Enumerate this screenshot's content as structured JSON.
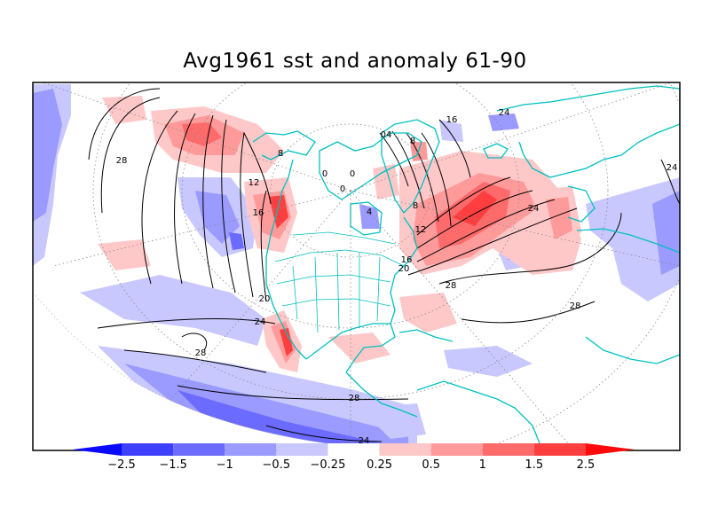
{
  "title": "Avg1961 sst and anomaly 61-90",
  "map": {
    "projection": "polar-stereographic",
    "region": "North America / North Pacific / North Atlantic",
    "contour_color": "#000000",
    "coastline_color": "#00c0c0",
    "grid_style": "dotted"
  },
  "contour_labels": [
    {
      "id": "c28-pac-north",
      "text": "28"
    },
    {
      "id": "c12-pac",
      "text": "12"
    },
    {
      "id": "c16-pac",
      "text": "16"
    },
    {
      "id": "c20-pac",
      "text": "20"
    },
    {
      "id": "c24-pac",
      "text": "24"
    },
    {
      "id": "c28-pac-south",
      "text": "28"
    },
    {
      "id": "c28-trop",
      "text": "28"
    },
    {
      "id": "c24-bottom",
      "text": "24"
    },
    {
      "id": "c8-alaska",
      "text": "8"
    },
    {
      "id": "c0-a",
      "text": "0"
    },
    {
      "id": "c0-b",
      "text": "0"
    },
    {
      "id": "c0-c",
      "text": "0"
    },
    {
      "id": "c4-hudson",
      "text": "4"
    },
    {
      "id": "c04-green",
      "text": "04"
    },
    {
      "id": "c8-green",
      "text": "8"
    },
    {
      "id": "c16-green",
      "text": "16"
    },
    {
      "id": "c24-europe",
      "text": "24"
    },
    {
      "id": "c8-lab",
      "text": "8"
    },
    {
      "id": "c12-atl",
      "text": "12"
    },
    {
      "id": "c16-atl",
      "text": "16"
    },
    {
      "id": "c20-atl",
      "text": "20"
    },
    {
      "id": "c24-atl",
      "text": "24"
    },
    {
      "id": "c28-atl",
      "text": "28"
    },
    {
      "id": "c28-atl-east",
      "text": "28"
    },
    {
      "id": "c24-east",
      "text": "24"
    }
  ],
  "colorbar": {
    "labels": [
      "−2.5",
      "−1.5",
      "−1",
      "−0.5",
      "−0.25",
      "0.25",
      "0.5",
      "1",
      "1.5",
      "2.5"
    ],
    "colors": [
      "#0a0aff",
      "#3f3fff",
      "#6b6bff",
      "#9a9aff",
      "#c8c8ff",
      "#ffffff",
      "#ffc8c8",
      "#ff9a9a",
      "#ff6b6b",
      "#ff3f3f",
      "#ff0a0a"
    ]
  }
}
